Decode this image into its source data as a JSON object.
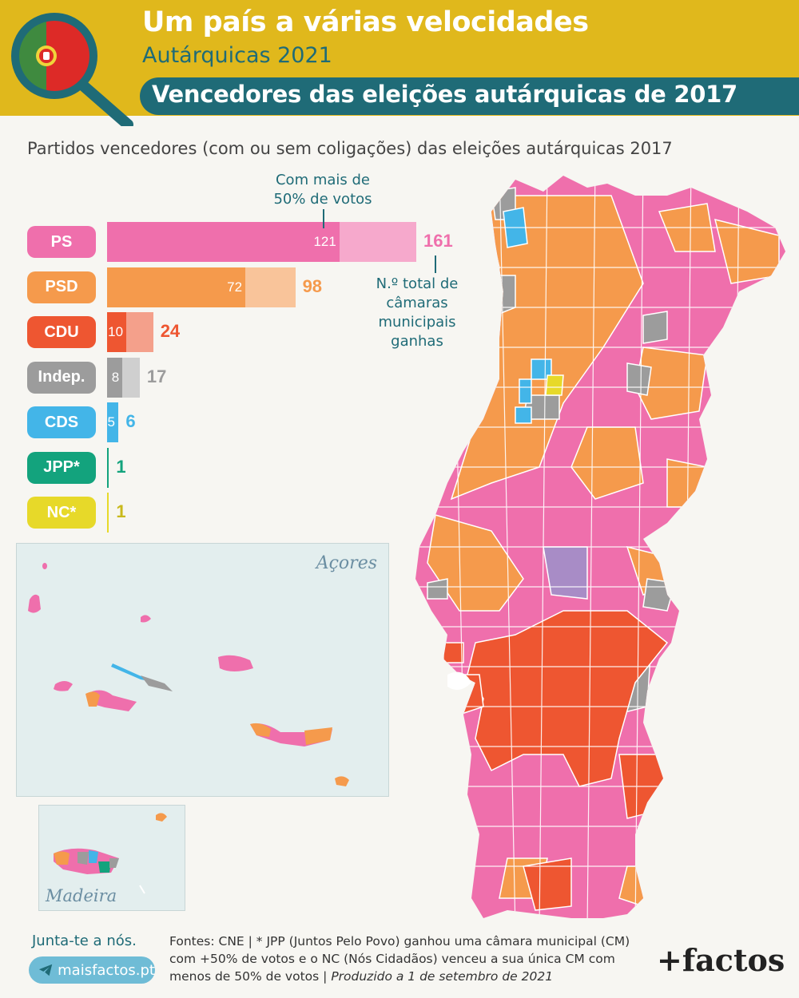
{
  "header": {
    "title": "Um país a várias velocidades",
    "subtitle": "Autárquicas 2021",
    "banner": "Vencedores das eleições autárquicas de 2017"
  },
  "colors": {
    "header_bg": "#e0b81c",
    "teal": "#1f6b77",
    "PS": "#ef6fac",
    "PSD": "#f59a4c",
    "CDU": "#ee5631",
    "Indep": "#9c9c9c",
    "CDS": "#43b5e8",
    "JPP": "#13a37d",
    "NC": "#e7d929",
    "Other": "#a88cc6"
  },
  "chart_data": {
    "type": "bar",
    "title": "Partidos vencedores (com ou sem coligações) das eleições autárquicas 2017",
    "categories": [
      "PS",
      "PSD",
      "CDU",
      "Indep.",
      "CDS",
      "JPP*",
      "NC*"
    ],
    "series": [
      {
        "name": "Com mais de 50% de votos",
        "values": [
          121,
          72,
          10,
          8,
          5,
          null,
          null
        ]
      },
      {
        "name": "N.º total de câmaras municipais ganhas",
        "values": [
          161,
          98,
          24,
          17,
          6,
          1,
          1
        ]
      }
    ]
  },
  "annotations": {
    "majority": "Com mais de 50% de votos",
    "total": "N.º total de câmaras municipais ganhas"
  },
  "maps": {
    "azores": "Açores",
    "madeira": "Madeira"
  },
  "footer": {
    "join": "Junta-te a nós.",
    "site": "maisfactos.pt",
    "sources": "Fontes: CNE | * JPP (Juntos Pelo Povo) ganhou uma câmara municipal (CM) com +50% de votos e o NC (Nós Cidadãos) venceu a sua única CM com menos de 50% de votos |",
    "produced": "Produzido a 1 de setembro de 2021",
    "brand": "+factos"
  }
}
